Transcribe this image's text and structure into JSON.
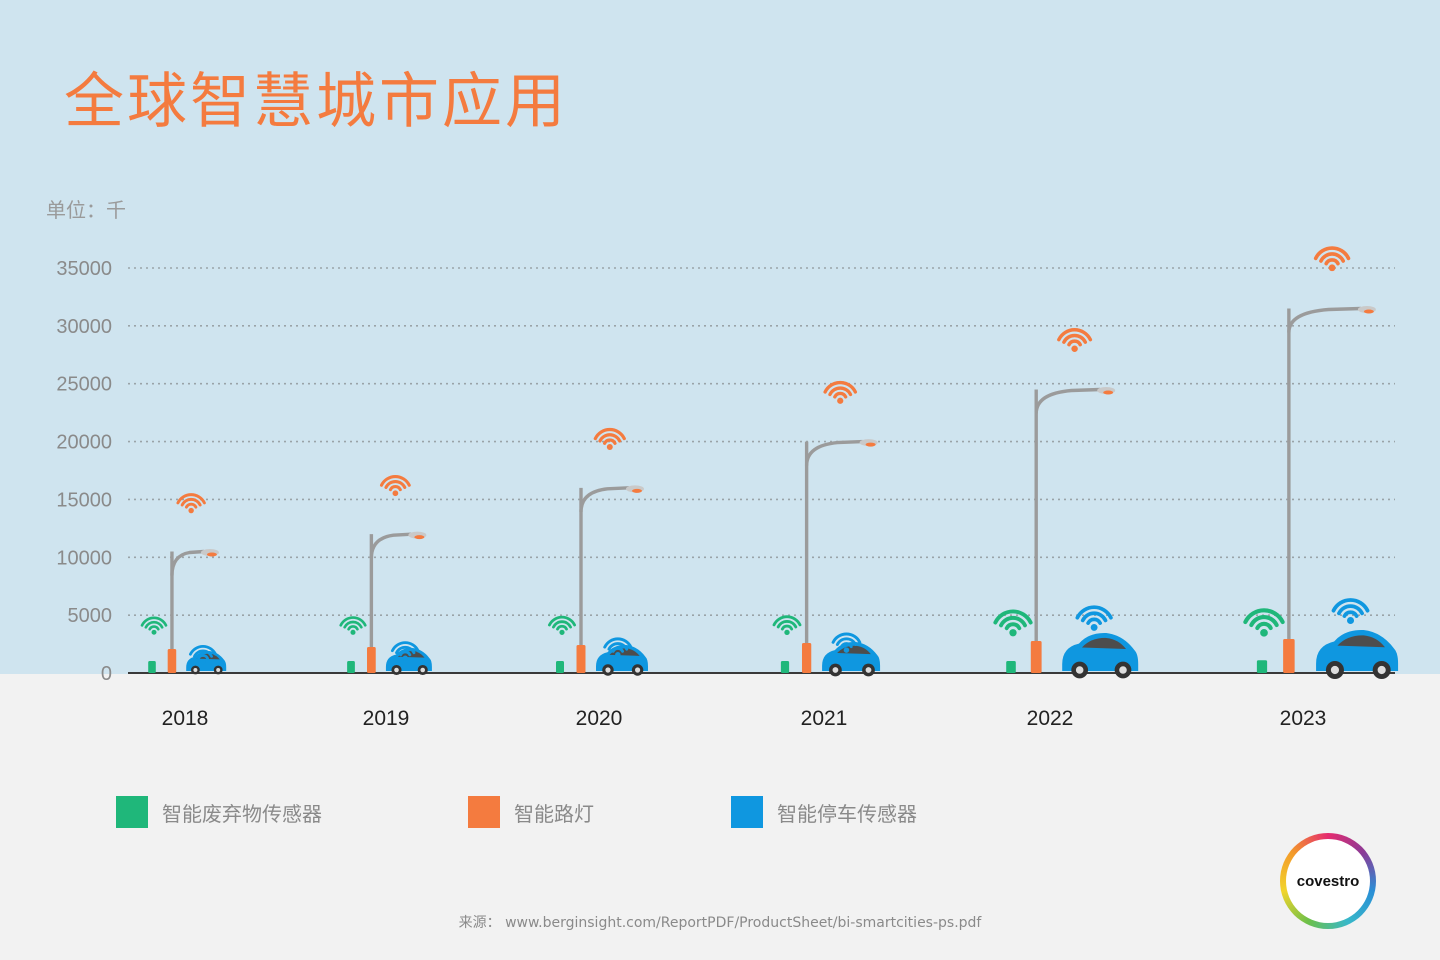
{
  "page": {
    "title": "全球智慧城市应用",
    "unit": "单位：千",
    "source": "来源：  www.berginsight.com/ReportPDF/ProductSheet/bi-smartcities-ps.pdf",
    "logo_text": "covestro"
  },
  "colors": {
    "waste": "#1fb77a",
    "streetlight": "#f47b3f",
    "parking": "#0f97e0",
    "pole": "#9b9b9b",
    "background_top": "#cfe4ef",
    "background_bottom": "#f2f2f2"
  },
  "chart_data": {
    "type": "bar",
    "categories": [
      "2018",
      "2019",
      "2020",
      "2021",
      "2022",
      "2023"
    ],
    "series": [
      {
        "name": "智能废弃物传感器",
        "values": [
          300,
          400,
          550,
          700,
          850,
          1100
        ]
      },
      {
        "name": "智能路灯",
        "values": [
          10500,
          12000,
          16000,
          20000,
          24500,
          31500
        ]
      },
      {
        "name": "智能停车传感器",
        "values": [
          900,
          1200,
          1500,
          1900,
          2500,
          3100
        ]
      }
    ],
    "yticks": [
      0,
      5000,
      10000,
      15000,
      20000,
      25000,
      30000,
      35000
    ],
    "ylim": [
      0,
      35000
    ],
    "grid": true,
    "legend_position": "bottom"
  }
}
